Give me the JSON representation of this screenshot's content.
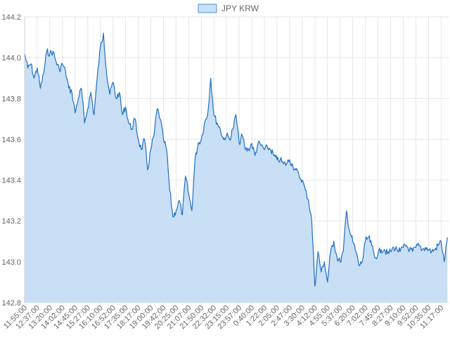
{
  "chart_data": {
    "type": "area",
    "title": "",
    "xlabel": "",
    "ylabel": "",
    "legend": {
      "placement": "top-center",
      "label": "JPY KRW"
    },
    "colors": {
      "line": "#1f6fc5",
      "fill": "#c9dff5",
      "legend_border": "#4a90d9",
      "grid": "#e6e6e6",
      "text": "#666666"
    },
    "grid": true,
    "ylim": [
      142.8,
      144.2
    ],
    "y_ticks": [
      "144.2",
      "144.0",
      "143.8",
      "143.6",
      "143.4",
      "143.2",
      "143.0",
      "142.8"
    ],
    "x_ticks": [
      "11:55:00",
      "12:37:00",
      "13:20:00",
      "14:02:00",
      "14:45:00",
      "15:27:00",
      "16:10:00",
      "16:52:00",
      "17:35:00",
      "18:17:00",
      "19:00:00",
      "19:42:00",
      "20:25:00",
      "21:07:00",
      "21:50:00",
      "22:32:00",
      "23:15:00",
      "23:57:00",
      "0:40:00",
      "1:22:00",
      "2:05:00",
      "2:47:00",
      "3:30:00",
      "4:12:00",
      "4:55:00",
      "5:37:00",
      "6:20:00",
      "7:02:00",
      "7:45:00",
      "8:27:00",
      "9:10:00",
      "9:52:00",
      "10:35:00",
      "11:17:00"
    ],
    "series": [
      {
        "name": "JPY KRW",
        "x": [
          0,
          0.25,
          0.5,
          0.75,
          1,
          1.25,
          1.5,
          1.75,
          2,
          2.25,
          2.5,
          2.75,
          3,
          3.25,
          3.5,
          3.75,
          4,
          4.25,
          4.5,
          4.75,
          5,
          5.25,
          5.5,
          5.75,
          6,
          6.25,
          6.5,
          6.75,
          7,
          7.25,
          7.5,
          7.75,
          8,
          8.25,
          8.5,
          8.75,
          9,
          9.25,
          9.5,
          9.75,
          10,
          10.25,
          10.5,
          10.75,
          11,
          11.25,
          11.5,
          11.75,
          12,
          12.25,
          12.5,
          12.75,
          13,
          13.25,
          13.5,
          13.75,
          14,
          14.25,
          14.5,
          14.75,
          15,
          15.25,
          15.5,
          15.75,
          16,
          16.25,
          16.5,
          16.75,
          17,
          17.25,
          17.5,
          17.75,
          18,
          18.25,
          18.5,
          18.75,
          19,
          19.25,
          19.5,
          19.75,
          20,
          20.25,
          20.5,
          20.75,
          21,
          21.25,
          21.5,
          21.75,
          22,
          22.25,
          22.5,
          22.75,
          23,
          23.25,
          23.5,
          23.75,
          24,
          24.25,
          24.5,
          24.75,
          25,
          25.25,
          25.5,
          25.75,
          26,
          26.25,
          26.5,
          26.75,
          27,
          27.25,
          27.5,
          27.75,
          28,
          28.25,
          28.5,
          28.75,
          29,
          29.25,
          29.5,
          29.75,
          30,
          30.25,
          30.5,
          30.75,
          31,
          31.25,
          31.5,
          31.75,
          32,
          32.25,
          32.5,
          32.75,
          33,
          33.25,
          33.5
        ],
        "values": [
          144.02,
          143.95,
          143.97,
          143.9,
          143.95,
          143.85,
          143.92,
          144.03,
          144.02,
          144.03,
          143.98,
          143.94,
          143.97,
          143.93,
          143.85,
          143.83,
          143.73,
          143.8,
          143.85,
          143.68,
          143.75,
          143.83,
          143.72,
          143.9,
          144.05,
          144.12,
          143.92,
          143.82,
          143.88,
          143.8,
          143.83,
          143.72,
          143.76,
          143.68,
          143.65,
          143.7,
          143.6,
          143.55,
          143.6,
          143.45,
          143.55,
          143.62,
          143.75,
          143.7,
          143.6,
          143.55,
          143.35,
          143.22,
          143.25,
          143.3,
          143.23,
          143.42,
          143.33,
          143.25,
          143.5,
          143.58,
          143.6,
          143.68,
          143.72,
          143.9,
          143.72,
          143.68,
          143.65,
          143.6,
          143.62,
          143.6,
          143.65,
          143.72,
          143.58,
          143.62,
          143.55,
          143.55,
          143.58,
          143.52,
          143.58,
          143.57,
          143.55,
          143.56,
          143.55,
          143.52,
          143.5,
          143.5,
          143.48,
          143.48,
          143.5,
          143.47,
          143.45,
          143.42,
          143.4,
          143.35,
          143.3,
          143.2,
          142.88,
          143.05,
          142.95,
          143.0,
          142.9,
          143.05,
          143.1,
          143.02,
          143.0,
          143.05,
          143.25,
          143.15,
          143.1,
          143.05,
          142.98,
          143.0,
          143.1,
          143.12,
          143.08,
          143.02,
          143.04,
          143.06,
          143.06,
          143.04,
          143.05,
          143.07,
          143.06,
          143.05,
          143.07,
          143.08,
          143.06,
          143.05,
          143.07,
          143.08,
          143.06,
          143.07,
          143.06,
          143.05,
          143.06,
          143.08,
          143.1,
          143.0,
          143.12
        ]
      }
    ]
  }
}
